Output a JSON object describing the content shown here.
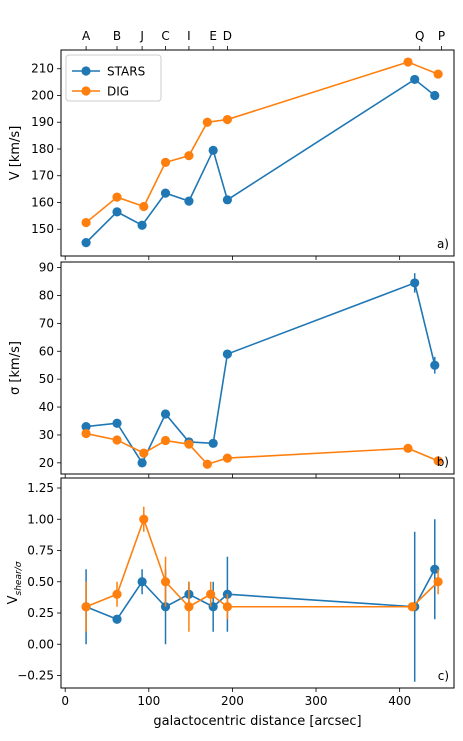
{
  "chart_data": [
    {
      "type": "line",
      "panel_label": "a)",
      "ylabel": "V [km/s]",
      "ylim": [
        140,
        217
      ],
      "yticks": [
        150,
        160,
        170,
        180,
        190,
        200,
        210
      ],
      "xlim": [
        -5,
        465
      ],
      "top_axis": {
        "labels": [
          "A",
          "B",
          "J",
          "C",
          "I",
          "E",
          "D",
          "Q",
          "P"
        ],
        "positions": [
          25,
          62,
          92,
          120,
          148,
          177,
          194,
          424,
          450
        ]
      },
      "legend": {
        "placement": "top-left",
        "entries": [
          "STARS",
          "DIG"
        ]
      },
      "series": [
        {
          "name": "STARS",
          "color": "#1f77b4",
          "marker": "circle",
          "x": [
            25,
            62,
            92,
            120,
            148,
            177,
            194,
            418,
            442
          ],
          "y": [
            145,
            156.5,
            151.5,
            163.5,
            160.5,
            179.5,
            161,
            206,
            200
          ]
        },
        {
          "name": "DIG",
          "color": "#ff7f0e",
          "marker": "diamond",
          "x": [
            25,
            62,
            94,
            120,
            148,
            170,
            194,
            410,
            446
          ],
          "y": [
            152.5,
            162,
            158.5,
            175,
            177.5,
            190,
            191,
            212.5,
            208
          ]
        }
      ]
    },
    {
      "type": "line",
      "panel_label": "b)",
      "ylabel": "σ [km/s]",
      "ylim": [
        16,
        92
      ],
      "yticks": [
        20,
        30,
        40,
        50,
        60,
        70,
        80,
        90
      ],
      "xlim": [
        -5,
        465
      ],
      "series": [
        {
          "name": "STARS",
          "color": "#1f77b4",
          "x": [
            25,
            62,
            92,
            120,
            148,
            177,
            194,
            418,
            442
          ],
          "y": [
            33,
            34.2,
            20,
            37.5,
            27.5,
            27,
            59,
            84.5,
            55
          ],
          "yerr": [
            1,
            1,
            1.5,
            1,
            1,
            1,
            1,
            3.5,
            3
          ]
        },
        {
          "name": "DIG",
          "color": "#ff7f0e",
          "x": [
            25,
            62,
            94,
            120,
            148,
            170,
            194,
            410,
            446
          ],
          "y": [
            30.5,
            28.2,
            23.5,
            28,
            26.7,
            19.5,
            21.7,
            25.2,
            20.7
          ],
          "yerr": [
            0,
            0,
            0,
            0,
            0,
            0,
            0,
            0,
            0
          ]
        }
      ]
    },
    {
      "type": "line",
      "panel_label": "c)",
      "ylabel": "V_shear/σ",
      "ylim": [
        -0.35,
        1.33
      ],
      "yticks": [
        -0.25,
        0.0,
        0.25,
        0.5,
        0.75,
        1.0,
        1.25
      ],
      "xlim": [
        -5,
        465
      ],
      "xticks": [
        0,
        100,
        200,
        300,
        400
      ],
      "xlabel": "galactocentric distance [arcsec]",
      "series": [
        {
          "name": "STARS",
          "color": "#1f77b4",
          "x": [
            25,
            62,
            92,
            120,
            148,
            177,
            194,
            418,
            442
          ],
          "y": [
            0.3,
            0.2,
            0.5,
            0.3,
            0.4,
            0.3,
            0.4,
            0.3,
            0.6
          ],
          "yerr": [
            0.3,
            0,
            0.1,
            0.3,
            0.1,
            0.2,
            0.3,
            0.6,
            0.4
          ]
        },
        {
          "name": "DIG",
          "color": "#ff7f0e",
          "x": [
            25,
            62,
            94,
            120,
            148,
            174,
            194,
            415,
            446
          ],
          "y": [
            0.3,
            0.4,
            1.0,
            0.5,
            0.3,
            0.4,
            0.3,
            0.3,
            0.5
          ],
          "yerr": [
            0.2,
            0.1,
            0.1,
            0.2,
            0.2,
            0.1,
            0.1,
            0,
            0.1
          ]
        }
      ]
    }
  ]
}
